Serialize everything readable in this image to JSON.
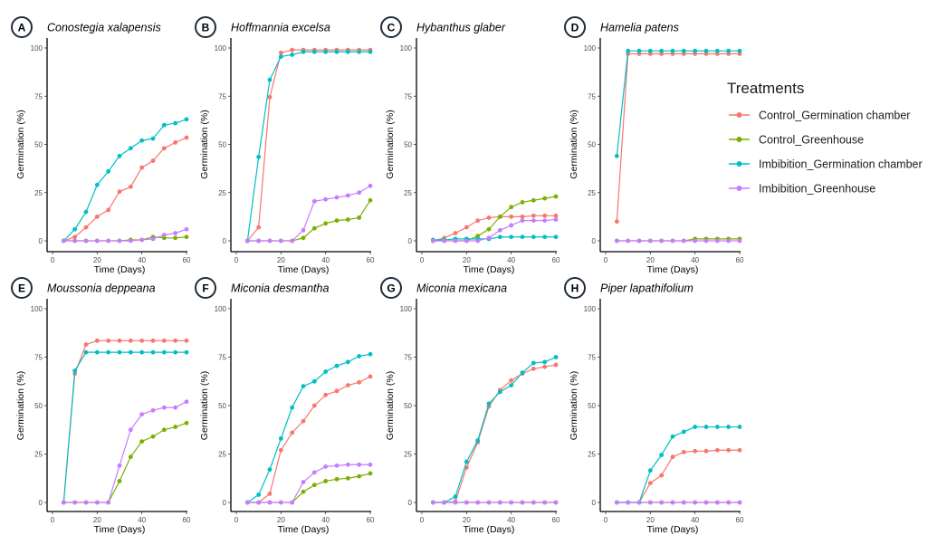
{
  "chart_data": {
    "type": "line",
    "x": [
      5,
      10,
      15,
      20,
      25,
      30,
      35,
      40,
      45,
      50,
      55,
      60
    ],
    "xlabel": "Time (Days)",
    "ylabel": "Germination (%)",
    "xlim": [
      0,
      60
    ],
    "ylim": [
      0,
      100
    ],
    "xticks": [
      0,
      20,
      40,
      60
    ],
    "yticks": [
      0,
      25,
      50,
      75,
      100
    ],
    "grid": false,
    "legend": {
      "title": "Treatments",
      "placement": "right",
      "entries": [
        {
          "name": "Control_Germination chamber",
          "color": "#F8766D"
        },
        {
          "name": "Control_Greenhouse",
          "color": "#7CAE00"
        },
        {
          "name": "Imbibition_Germination chamber",
          "color": "#00BFC4"
        },
        {
          "name": "Imbibition_Greenhouse",
          "color": "#C77CFF"
        }
      ]
    },
    "panels": [
      {
        "letter": "A",
        "title": "Conostegia xalapensis",
        "series": [
          {
            "name": "Control_Germination chamber",
            "values": [
              0,
              2,
              7,
              12.5,
              16,
              25.5,
              28,
              38,
              41.5,
              48,
              51,
              53.5
            ]
          },
          {
            "name": "Control_Greenhouse",
            "values": [
              0,
              0,
              0,
              0,
              0,
              0,
              0.5,
              0.5,
              2,
              1.5,
              1.5,
              2
            ]
          },
          {
            "name": "Imbibition_Germination chamber",
            "values": [
              0,
              6,
              15,
              29,
              36,
              44,
              48,
              52,
              53,
              60,
              61,
              63
            ]
          },
          {
            "name": "Imbibition_Greenhouse",
            "values": [
              0,
              0,
              0,
              0,
              0,
              0,
              0,
              0.5,
              1,
              3,
              4,
              6
            ]
          }
        ]
      },
      {
        "letter": "B",
        "title": "Hoffmannia excelsa",
        "series": [
          {
            "name": "Control_Germination chamber",
            "values": [
              0,
              7,
              74.5,
              97.5,
              99,
              99,
              99,
              99,
              99,
              99,
              99,
              99
            ]
          },
          {
            "name": "Control_Greenhouse",
            "values": [
              0,
              0,
              0,
              0,
              0,
              1.5,
              6.5,
              9,
              10.5,
              11,
              12,
              21
            ]
          },
          {
            "name": "Imbibition_Germination chamber",
            "values": [
              0,
              43.5,
              83.5,
              95.5,
              96.5,
              98,
              98,
              98,
              98,
              98,
              98,
              98
            ]
          },
          {
            "name": "Imbibition_Greenhouse",
            "values": [
              0,
              0,
              0,
              0,
              0,
              5.5,
              20.5,
              21.5,
              22.5,
              23.5,
              25,
              28.5
            ]
          }
        ]
      },
      {
        "letter": "C",
        "title": "Hybanthus glaber",
        "series": [
          {
            "name": "Control_Germination chamber",
            "values": [
              0,
              1.5,
              4,
              7,
              10.5,
              12,
              12.5,
              12.5,
              12.5,
              13,
              13,
              13
            ]
          },
          {
            "name": "Control_Greenhouse",
            "values": [
              0,
              0,
              0,
              0,
              2.5,
              6,
              12.5,
              17.5,
              20,
              21,
              22,
              23
            ]
          },
          {
            "name": "Imbibition_Germination chamber",
            "values": [
              0.5,
              0.5,
              1,
              1,
              1,
              1,
              2,
              2,
              2,
              2,
              2,
              2
            ]
          },
          {
            "name": "Imbibition_Greenhouse",
            "values": [
              0,
              0,
              0,
              0,
              0,
              1.5,
              5.5,
              8,
              10.5,
              10.5,
              10.5,
              11
            ]
          }
        ]
      },
      {
        "letter": "D",
        "title": "Hamelia patens",
        "series": [
          {
            "name": "Control_Germination chamber",
            "values": [
              10,
              97,
              97,
              97,
              97,
              97,
              97,
              97,
              97,
              97,
              97,
              97
            ]
          },
          {
            "name": "Control_Greenhouse",
            "values": [
              0,
              0,
              0,
              0,
              0,
              0,
              0,
              1,
              1,
              1,
              1,
              1
            ]
          },
          {
            "name": "Imbibition_Germination chamber",
            "values": [
              44,
              98.5,
              98.5,
              98.5,
              98.5,
              98.5,
              98.5,
              98.5,
              98.5,
              98.5,
              98.5,
              98.5
            ]
          },
          {
            "name": "Imbibition_Greenhouse",
            "values": [
              0,
              0,
              0,
              0,
              0,
              0,
              0,
              0,
              0,
              0,
              0,
              0
            ]
          }
        ]
      },
      {
        "letter": "E",
        "title": "Moussonia deppeana",
        "series": [
          {
            "name": "Control_Germination chamber",
            "values": [
              0,
              66.5,
              81.5,
              83.5,
              83.5,
              83.5,
              83.5,
              83.5,
              83.5,
              83.5,
              83.5,
              83.5
            ]
          },
          {
            "name": "Control_Greenhouse",
            "values": [
              0,
              0,
              0,
              0,
              0,
              11,
              23.5,
              31.5,
              34,
              37.5,
              39,
              41
            ]
          },
          {
            "name": "Imbibition_Germination chamber",
            "values": [
              0,
              68,
              77.5,
              77.5,
              77.5,
              77.5,
              77.5,
              77.5,
              77.5,
              77.5,
              77.5,
              77.5
            ]
          },
          {
            "name": "Imbibition_Greenhouse",
            "values": [
              0,
              0,
              0,
              0,
              0,
              19,
              37.5,
              45.5,
              47.5,
              49,
              49,
              52
            ]
          }
        ]
      },
      {
        "letter": "F",
        "title": "Miconia desmantha",
        "series": [
          {
            "name": "Control_Germination chamber",
            "values": [
              0,
              0,
              4.5,
              27,
              36,
              42,
              50,
              55.5,
              57.5,
              60.5,
              62,
              65
            ]
          },
          {
            "name": "Control_Greenhouse",
            "values": [
              0,
              0,
              0,
              0,
              0,
              5.5,
              9,
              11,
              12,
              12.5,
              13.5,
              15
            ]
          },
          {
            "name": "Imbibition_Germination chamber",
            "values": [
              0,
              4,
              17,
              33,
              49,
              60,
              62.5,
              67.5,
              70.5,
              72.5,
              75.5,
              76.5
            ]
          },
          {
            "name": "Imbibition_Greenhouse",
            "values": [
              0,
              0,
              0,
              0,
              0,
              10.5,
              15.5,
              18.5,
              19,
              19.5,
              19.5,
              19.5
            ]
          }
        ]
      },
      {
        "letter": "G",
        "title": "Miconia mexicana",
        "series": [
          {
            "name": "Control_Germination chamber",
            "values": [
              0,
              0,
              0.5,
              18,
              31,
              49.5,
              58,
              63,
              66.5,
              69,
              70,
              71
            ]
          },
          {
            "name": "Control_Greenhouse",
            "values": [
              0,
              0,
              0,
              0,
              0,
              0,
              0,
              0,
              0,
              0,
              0,
              0
            ]
          },
          {
            "name": "Imbibition_Germination chamber",
            "values": [
              0,
              0,
              3,
              21,
              32,
              51,
              57,
              60.5,
              67,
              72,
              72.5,
              75
            ]
          },
          {
            "name": "Imbibition_Greenhouse",
            "values": [
              0,
              0,
              0,
              0,
              0,
              0,
              0,
              0,
              0,
              0,
              0,
              0
            ]
          }
        ]
      },
      {
        "letter": "H",
        "title": "Piper lapathifolium",
        "series": [
          {
            "name": "Control_Germination chamber",
            "values": [
              0,
              0,
              0,
              10,
              14,
              23.5,
              26,
              26.5,
              26.5,
              27,
              27,
              27
            ]
          },
          {
            "name": "Control_Greenhouse",
            "values": [
              0,
              0,
              0,
              0,
              0,
              0,
              0,
              0,
              0,
              0,
              0,
              0
            ]
          },
          {
            "name": "Imbibition_Germination chamber",
            "values": [
              0,
              0,
              0,
              16.5,
              24.5,
              34,
              36.5,
              39,
              39,
              39,
              39,
              39
            ]
          },
          {
            "name": "Imbibition_Greenhouse",
            "values": [
              0,
              0,
              0,
              0,
              0,
              0,
              0,
              0,
              0,
              0,
              0,
              0
            ]
          }
        ]
      }
    ]
  }
}
